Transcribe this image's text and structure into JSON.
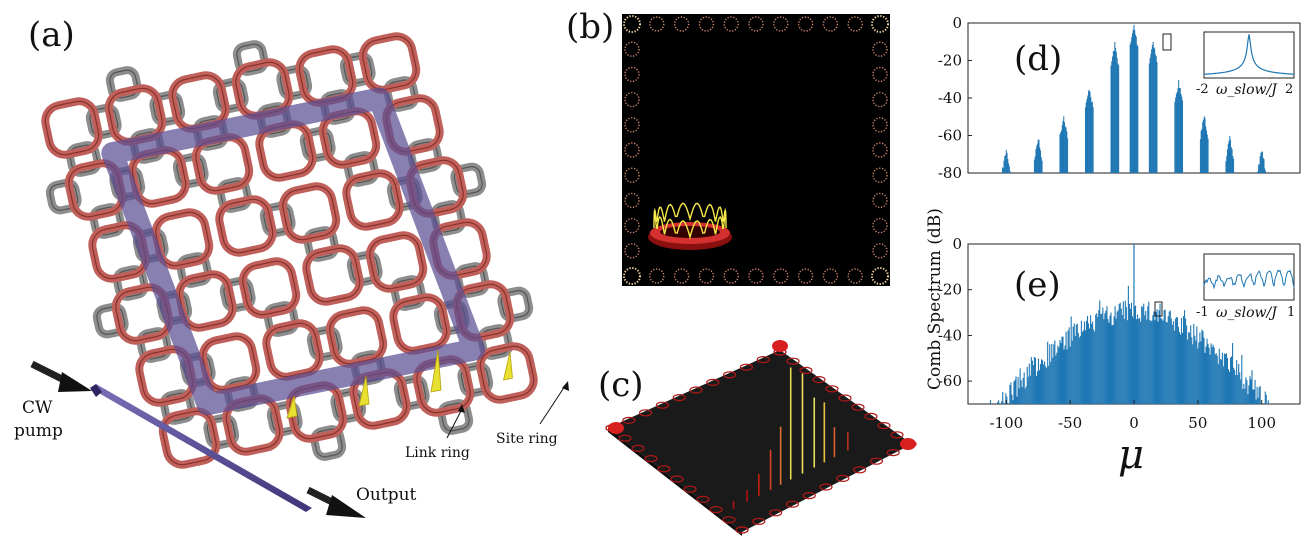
{
  "panels": {
    "a": {
      "letter": "(a)",
      "labels": {
        "cw": "CW",
        "pump": "pump",
        "output": "Output",
        "link_ring": "Link ring",
        "site_ring": "Site ring"
      }
    },
    "b": {
      "letter": "(b)"
    },
    "c": {
      "letter": "(c)"
    },
    "d": {
      "letter": "(d)"
    },
    "e": {
      "letter": "(e)"
    }
  },
  "colors": {
    "site_ring": "#c0605a",
    "link_ring": "#8d8d8d",
    "waveguide": "#5a4f93",
    "spectrum": "#1f77b4",
    "peak": "#e8e030"
  },
  "chart_data": [
    {
      "id": "d",
      "type": "bar",
      "ylabel": "",
      "xlim": [
        -130,
        130
      ],
      "ylim": [
        -80,
        0
      ],
      "yticks": [
        0,
        -20,
        -40,
        -60,
        -80
      ],
      "groups_x": [
        -100,
        -75,
        -55,
        -35,
        -15,
        0,
        15,
        35,
        55,
        75,
        100
      ],
      "groups_peak": [
        -66,
        -60,
        -48,
        -33,
        -10,
        0,
        -8,
        -30,
        -48,
        -60,
        -66
      ],
      "inset": {
        "xlabel": "ω_slow/J",
        "xticks": [
          "-2",
          "2"
        ]
      }
    },
    {
      "id": "e",
      "type": "bar",
      "xlabel": "μ",
      "ylabel": "Comb Spectrum (dB)",
      "xlim": [
        -130,
        130
      ],
      "ylim": [
        -70,
        0
      ],
      "yticks": [
        0,
        -20,
        -40,
        -60
      ],
      "xticks": [
        "-100",
        "-50",
        "0",
        "50",
        "100"
      ],
      "xtick_values": [
        -100,
        -50,
        0,
        50,
        100
      ],
      "envelope_peak": -24,
      "central_line": 0,
      "inset": {
        "xlabel": "ω_slow/J",
        "xticks": [
          "-1",
          "1"
        ]
      }
    }
  ]
}
